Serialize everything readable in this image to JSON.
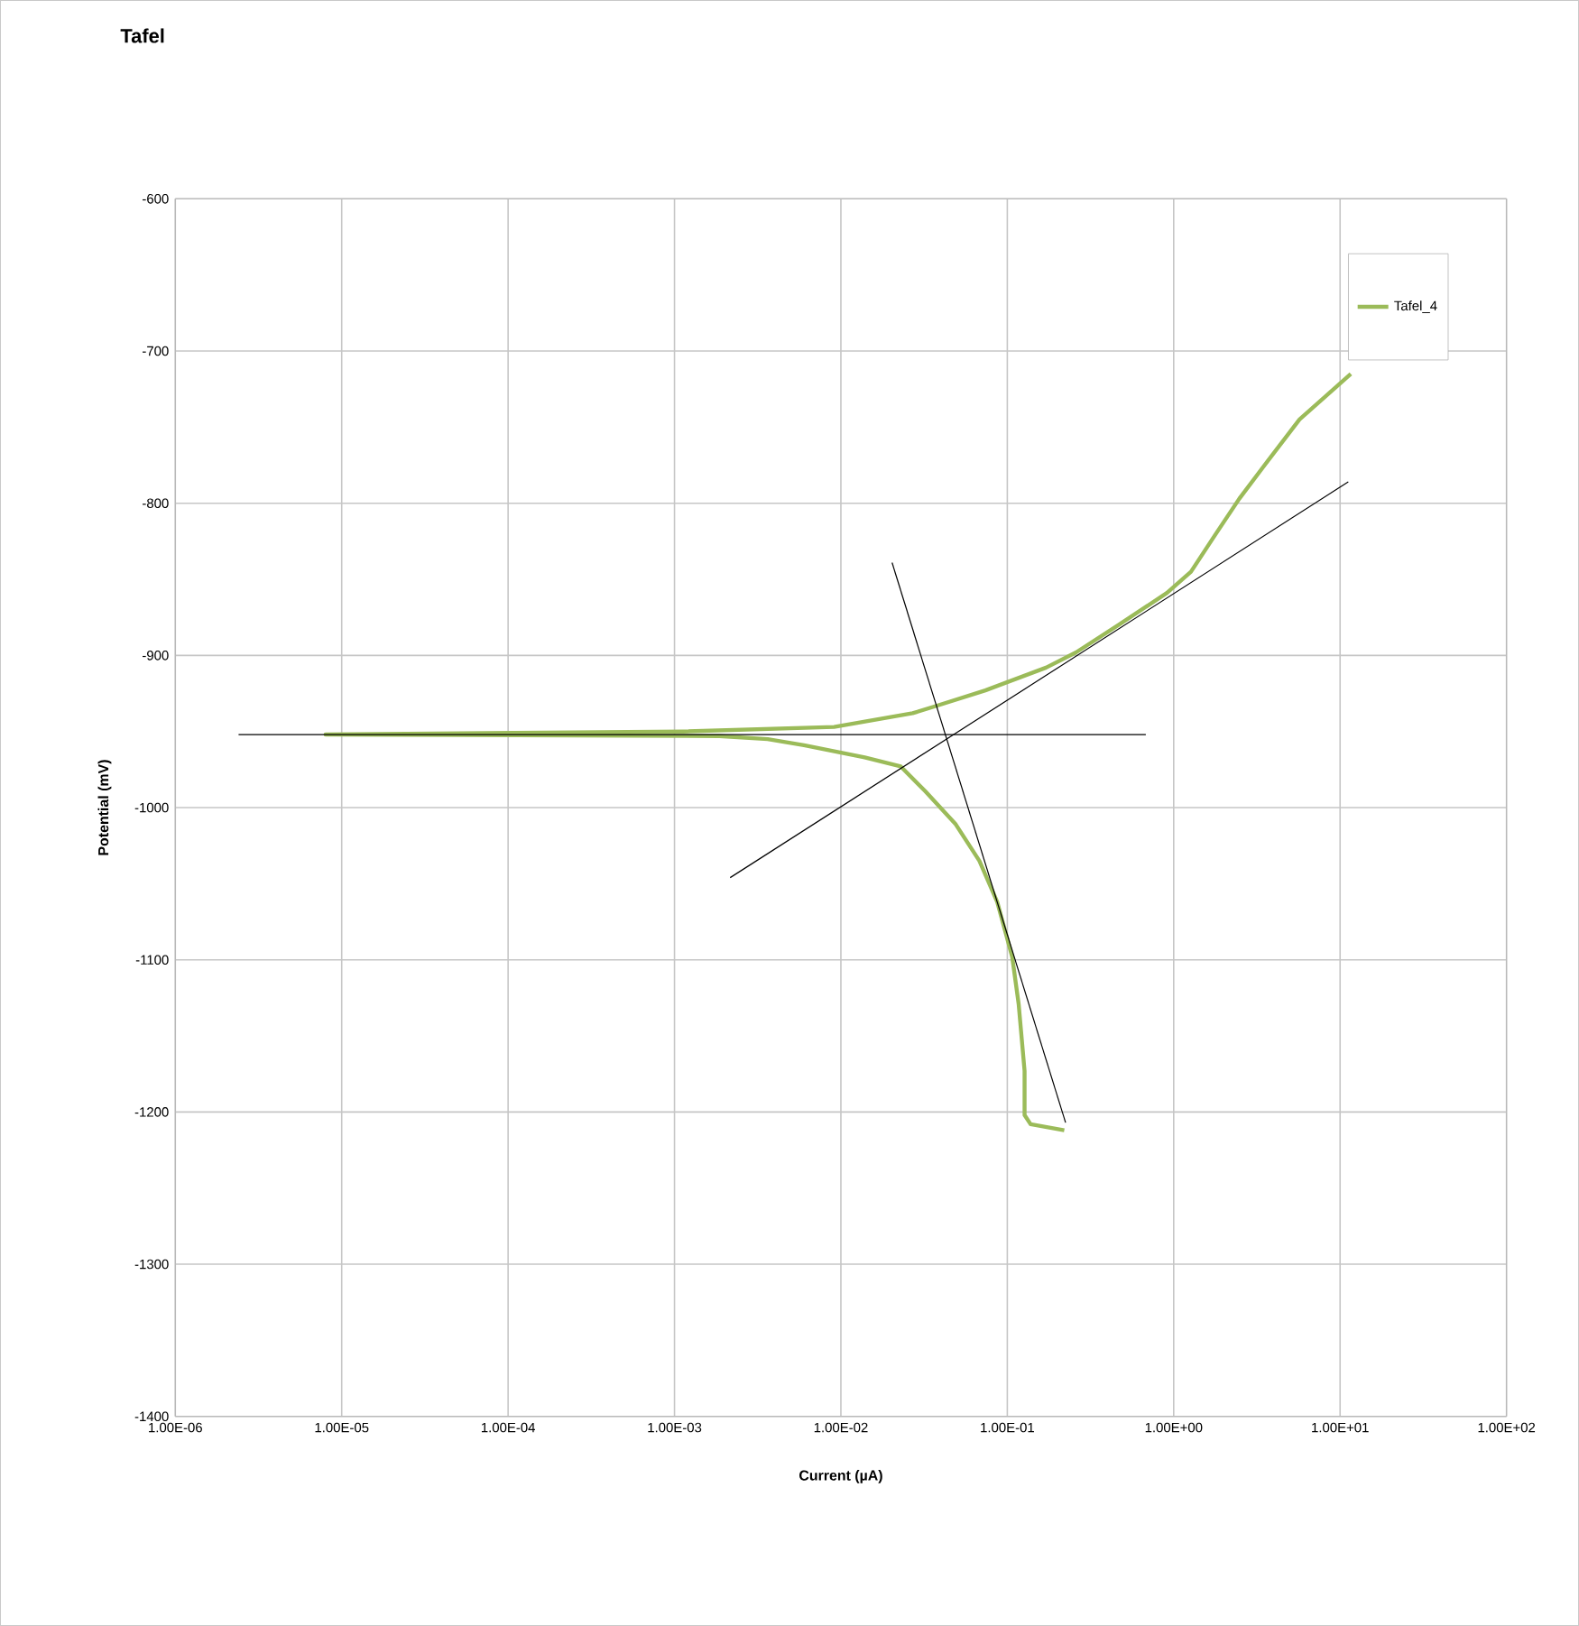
{
  "chart_data": {
    "type": "line",
    "title": "Tafel",
    "xlabel": "Current (µA)",
    "ylabel": "Potential (mV)",
    "log": "x",
    "grid": true,
    "legend": "top right",
    "xlim": [
      1e-06,
      100
    ],
    "ylim": [
      -1400,
      -600
    ],
    "xticks": [
      {
        "value": 1e-06,
        "label": "1.00E-06"
      },
      {
        "value": 1e-05,
        "label": "1.00E-05"
      },
      {
        "value": 0.0001,
        "label": "1.00E-04"
      },
      {
        "value": 0.001,
        "label": "1.00E-03"
      },
      {
        "value": 0.01,
        "label": "1.00E-02"
      },
      {
        "value": 0.1,
        "label": "1.00E-01"
      },
      {
        "value": 1,
        "label": "1.00E+00"
      },
      {
        "value": 10,
        "label": "1.00E+01"
      },
      {
        "value": 100,
        "label": "1.00E+02"
      }
    ],
    "yticks": [
      -1400,
      -1300,
      -1200,
      -1100,
      -1000,
      -900,
      -800,
      -700,
      -600
    ],
    "series": [
      {
        "name": "Tafel_4",
        "color": "#9bbb59",
        "x": [
          0.22,
          0.138,
          0.127,
          0.127,
          0.117,
          0.107,
          0.087,
          0.068,
          0.049,
          0.032,
          0.0229,
          0.0139,
          0.006,
          0.00363,
          0.00186,
          8e-06,
          0.00113,
          0.0091,
          0.027,
          0.0379,
          0.0738,
          0.171,
          0.259,
          0.466,
          0.91,
          1.27,
          1.77,
          2.48,
          3.46,
          5.7,
          11.6
        ],
        "values": [
          -1212,
          -1208,
          -1202,
          -1173,
          -1129,
          -1098,
          -1062,
          -1035,
          -1011,
          -989,
          -973,
          -967,
          -959,
          -955,
          -953,
          -952,
          -950,
          -947,
          -938,
          -933,
          -923,
          -908,
          -898,
          -880,
          -859,
          -845,
          -821,
          -797,
          -776,
          -745,
          -715
        ]
      },
      {
        "color": "#000000",
        "x": [
          2.4e-06,
          0.68
        ],
        "values": [
          -952,
          -952
        ]
      },
      {
        "color": "#000000",
        "x": [
          0.00216,
          11.2
        ],
        "values": [
          -1046,
          -786
        ]
      },
      {
        "color": "#000000",
        "x": [
          0.0203,
          0.224
        ],
        "values": [
          -839,
          -1207
        ]
      }
    ]
  }
}
